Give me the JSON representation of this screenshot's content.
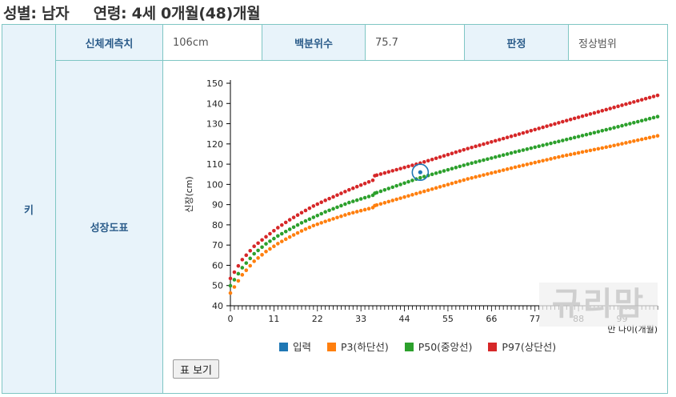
{
  "heading": {
    "sex": "성별: 남자",
    "age": "연령: 4세 0개월(48)개월"
  },
  "table": {
    "row1": {
      "label1": "신체계측치",
      "value1": "106cm",
      "label2": "백분위수",
      "value2": "75.7",
      "label3": "판정",
      "value3": "정상범위"
    },
    "row_head": "키",
    "row2_label": "성장도표",
    "button": "표 보기"
  },
  "watermark": "규리맘",
  "colors": {
    "input": "#1f77b4",
    "p3": "#ff7f0e",
    "p50": "#2ca02c",
    "p97": "#d62728",
    "border": "#7fc6c4",
    "header_bg": "#e8f3fa"
  },
  "chart_data": {
    "type": "scatter",
    "title": "",
    "xlabel": "만 나이(개월)",
    "ylabel": "신장(cm)",
    "xlim": [
      0,
      108
    ],
    "ylim": [
      40,
      150
    ],
    "x_ticks": [
      0,
      11,
      22,
      33,
      44,
      55,
      66,
      77,
      88,
      99
    ],
    "y_ticks": [
      40,
      50,
      60,
      70,
      80,
      90,
      100,
      110,
      120,
      130,
      140,
      150
    ],
    "legend_position": "bottom",
    "input_point": {
      "x": 48,
      "y": 106
    },
    "series": [
      {
        "name": "입력",
        "color": "#1f77b4"
      },
      {
        "name": "P3(하단선)",
        "color": "#ff7f0e",
        "points": [
          [
            0,
            46.3
          ],
          [
            3,
            55.3
          ],
          [
            6,
            62
          ],
          [
            9,
            66.8
          ],
          [
            12,
            70.7
          ],
          [
            15,
            74
          ],
          [
            18,
            77
          ],
          [
            21,
            79.6
          ],
          [
            24,
            81.7
          ],
          [
            30,
            85.5
          ],
          [
            36,
            88.5
          ],
          [
            36.5,
            89.5
          ],
          [
            48,
            96
          ],
          [
            60,
            102.7
          ],
          [
            72,
            108.5
          ],
          [
            84,
            114
          ],
          [
            96,
            118.8
          ],
          [
            108,
            124
          ]
        ]
      },
      {
        "name": "P50(중앙선)",
        "color": "#2ca02c",
        "points": [
          [
            0,
            49.9
          ],
          [
            3,
            58.8
          ],
          [
            6,
            65.7
          ],
          [
            9,
            70.6
          ],
          [
            12,
            74.5
          ],
          [
            15,
            77.8
          ],
          [
            18,
            81
          ],
          [
            21,
            83.7
          ],
          [
            24,
            86.4
          ],
          [
            30,
            91
          ],
          [
            36,
            94.6
          ],
          [
            36.5,
            95.6
          ],
          [
            48,
            103.3
          ],
          [
            60,
            110
          ],
          [
            72,
            116
          ],
          [
            84,
            121.7
          ],
          [
            96,
            127.5
          ],
          [
            108,
            133.5
          ]
        ]
      },
      {
        "name": "P97(상단선)",
        "color": "#d62728",
        "points": [
          [
            0,
            53.5
          ],
          [
            3,
            62.8
          ],
          [
            6,
            69.4
          ],
          [
            9,
            74.1
          ],
          [
            12,
            78.6
          ],
          [
            15,
            82.5
          ],
          [
            18,
            86
          ],
          [
            21,
            89.3
          ],
          [
            24,
            92.1
          ],
          [
            30,
            97.3
          ],
          [
            36,
            102
          ],
          [
            36.5,
            104.3
          ],
          [
            48,
            110.5
          ],
          [
            60,
            117.7
          ],
          [
            72,
            124.3
          ],
          [
            84,
            131
          ],
          [
            96,
            137.5
          ],
          [
            108,
            144
          ]
        ]
      }
    ]
  }
}
